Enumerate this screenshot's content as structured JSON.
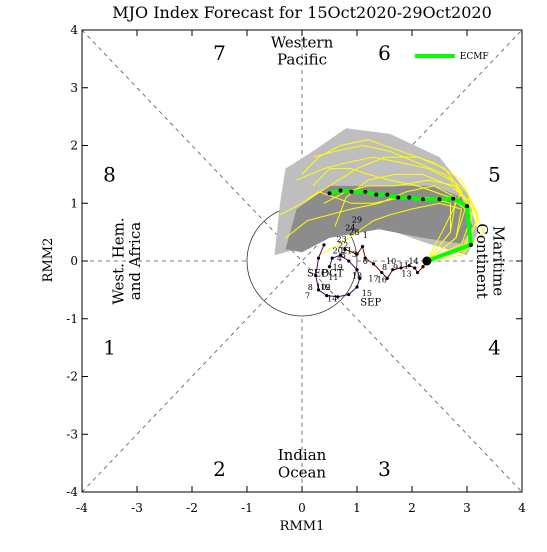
{
  "chart_data": {
    "type": "line",
    "title": "MJO Index Forecast for 15Oct2020-29Oct2020",
    "xlabel": "RMM1",
    "ylabel": "RMM2",
    "xlim": [
      -4,
      4
    ],
    "ylim": [
      -4,
      4
    ],
    "x_ticks": [
      "-4",
      "-3",
      "-2",
      "-1",
      "0",
      "1",
      "2",
      "3",
      "4"
    ],
    "y_ticks": [
      "-4",
      "-3",
      "-2",
      "-1",
      "0",
      "1",
      "2",
      "3",
      "4"
    ],
    "phases": [
      "1",
      "2",
      "3",
      "4",
      "5",
      "6",
      "7",
      "8"
    ],
    "regions": {
      "top": [
        "Western",
        "Pacific"
      ],
      "bottom": [
        "Indian",
        "Ocean"
      ],
      "left": [
        "West. Hem.",
        "and Africa"
      ],
      "right": [
        "Maritime",
        "Continent"
      ]
    },
    "legend": {
      "label": "ECMF",
      "color": "#00ff00",
      "position": "top-right"
    },
    "colors": {
      "ensemble_member": "#ffff00",
      "outer_spread": "#bebebe",
      "inner_spread": "#8c8c8c",
      "ensemble_mean": "#00ff00",
      "september": "#4b0082",
      "october": "#8b0000"
    },
    "outer_spread": [
      [
        -0.5,
        0.1
      ],
      [
        -0.4,
        1.0
      ],
      [
        -0.3,
        1.6
      ],
      [
        0.2,
        1.9
      ],
      [
        0.8,
        2.3
      ],
      [
        1.6,
        2.2
      ],
      [
        2.5,
        1.8
      ],
      [
        3.0,
        1.2
      ],
      [
        3.2,
        0.5
      ],
      [
        3.0,
        0.1
      ],
      [
        2.3,
        0.3
      ],
      [
        1.4,
        0.6
      ],
      [
        0.6,
        0.5
      ],
      [
        -0.1,
        0.2
      ]
    ],
    "inner_spread": [
      [
        -0.3,
        0.2
      ],
      [
        -0.1,
        0.9
      ],
      [
        0.5,
        1.3
      ],
      [
        1.5,
        1.3
      ],
      [
        2.4,
        1.3
      ],
      [
        2.9,
        1.1
      ],
      [
        3.1,
        0.6
      ],
      [
        2.9,
        0.3
      ],
      [
        2.2,
        0.4
      ],
      [
        1.4,
        0.55
      ],
      [
        0.5,
        0.4
      ],
      [
        0.0,
        0.15
      ]
    ],
    "ensemble_mean": {
      "x": [
        2.27,
        3.07,
        3.0,
        2.75,
        2.5,
        2.2,
        1.95,
        1.75,
        1.55,
        1.35,
        1.15,
        0.9,
        0.7,
        0.5
      ],
      "y": [
        0.0,
        0.28,
        0.95,
        1.08,
        1.07,
        1.07,
        1.1,
        1.1,
        1.15,
        1.15,
        1.2,
        1.2,
        1.22,
        1.17
      ]
    },
    "ensemble_members": [
      {
        "x": [
          2.27,
          2.8,
          3.0,
          2.7,
          2.3,
          1.8,
          1.3,
          0.8,
          0.4,
          -0.1
        ],
        "y": [
          0.0,
          0.4,
          1.0,
          1.4,
          1.6,
          1.7,
          1.8,
          1.7,
          1.6,
          1.4
        ]
      },
      {
        "x": [
          2.27,
          2.9,
          3.2,
          3.0,
          2.6,
          2.1,
          1.6,
          1.1,
          0.6,
          0.2
        ],
        "y": [
          0.0,
          0.2,
          0.7,
          1.2,
          1.5,
          1.7,
          1.9,
          2.0,
          1.9,
          1.8
        ]
      },
      {
        "x": [
          2.27,
          2.7,
          2.8,
          2.4,
          1.9,
          1.4,
          0.9,
          0.5,
          0.1,
          -0.3
        ],
        "y": [
          0.0,
          0.5,
          1.1,
          1.3,
          1.2,
          1.0,
          0.9,
          0.8,
          0.7,
          0.4
        ]
      },
      {
        "x": [
          2.27,
          3.0,
          3.1,
          2.8,
          2.3,
          1.7,
          1.2,
          0.8,
          0.4
        ],
        "y": [
          0.0,
          0.3,
          0.9,
          1.3,
          1.4,
          1.3,
          1.3,
          1.2,
          1.0
        ]
      },
      {
        "x": [
          2.27,
          2.6,
          2.9,
          2.6,
          2.1,
          1.5,
          1.0,
          0.5,
          0.0,
          -0.4
        ],
        "y": [
          0.0,
          0.6,
          1.2,
          1.6,
          1.8,
          1.8,
          1.6,
          1.3,
          1.0,
          0.8
        ]
      },
      {
        "x": [
          2.27,
          2.9,
          3.3,
          3.1,
          2.7,
          2.2,
          1.7,
          1.2,
          0.8,
          0.6
        ],
        "y": [
          0.0,
          0.1,
          0.5,
          1.0,
          1.3,
          1.5,
          1.5,
          1.4,
          1.1,
          0.6
        ]
      },
      {
        "x": [
          2.27,
          2.8,
          2.9,
          2.5,
          2.0,
          1.6,
          1.3,
          1.0,
          0.7,
          0.3
        ],
        "y": [
          0.0,
          0.4,
          0.9,
          1.0,
          0.9,
          0.8,
          0.7,
          0.5,
          0.3,
          0.1
        ]
      },
      {
        "x": [
          2.27,
          3.0,
          3.2,
          2.9,
          2.4,
          1.8,
          1.2,
          0.7,
          0.3,
          0.0
        ],
        "y": [
          0.0,
          0.2,
          0.8,
          1.4,
          1.7,
          1.9,
          2.1,
          2.0,
          1.8,
          1.5
        ]
      },
      {
        "x": [
          2.27,
          2.7,
          2.7,
          2.3,
          1.8,
          1.3,
          0.9,
          0.6,
          0.3,
          0.0
        ],
        "y": [
          0.0,
          0.5,
          1.0,
          1.1,
          1.1,
          1.0,
          1.0,
          1.1,
          1.2,
          1.0
        ]
      },
      {
        "x": [
          2.27,
          2.9,
          3.1,
          2.7,
          2.1,
          1.6,
          1.2,
          0.9,
          0.5,
          0.2
        ],
        "y": [
          0.0,
          0.3,
          0.8,
          1.1,
          1.3,
          1.4,
          1.5,
          1.6,
          1.6,
          1.3
        ]
      }
    ],
    "observed_september": {
      "x": [
        0.4,
        0.3,
        0.25,
        0.3,
        0.45,
        0.65,
        0.85,
        1.0,
        1.05,
        1.0,
        0.85,
        0.7,
        0.55,
        0.5
      ],
      "y": [
        0.28,
        0.05,
        -0.25,
        -0.5,
        -0.6,
        -0.62,
        -0.58,
        -0.45,
        -0.3,
        -0.15,
        0.0,
        0.1,
        0.05,
        -0.1
      ],
      "labels": [
        {
          "text": "SEP",
          "x": 1.25,
          "y": -0.72
        }
      ]
    },
    "observed_october": {
      "x": [
        0.78,
        1.0,
        1.1,
        1.15,
        1.3,
        1.45,
        1.55,
        1.65,
        1.8,
        1.95,
        2.05,
        2.1,
        2.2,
        2.27
      ],
      "y": [
        0.2,
        0.12,
        0.25,
        0.05,
        -0.05,
        -0.2,
        -0.3,
        -0.15,
        -0.12,
        -0.08,
        -0.12,
        -0.2,
        -0.1,
        0.0
      ],
      "labels": [
        {
          "text": "13",
          "x": 1.9,
          "y": -0.22
        },
        {
          "text": "14",
          "x": 2.03,
          "y": 0.0
        }
      ]
    },
    "day_labels": [
      {
        "text": "29",
        "x": 1.0,
        "y": 0.72
      },
      {
        "text": "24",
        "x": 0.88,
        "y": 0.58
      },
      {
        "text": "28",
        "x": 0.95,
        "y": 0.5
      },
      {
        "text": "1",
        "x": 1.15,
        "y": 0.45
      },
      {
        "text": "23",
        "x": 0.72,
        "y": 0.38
      },
      {
        "text": "22",
        "x": 0.75,
        "y": 0.28
      },
      {
        "text": "21",
        "x": 0.82,
        "y": 0.18
      },
      {
        "text": "3",
        "x": 0.95,
        "y": 0.12
      },
      {
        "text": "20",
        "x": 0.65,
        "y": 0.18
      },
      {
        "text": "5",
        "x": 0.75,
        "y": 0.1
      },
      {
        "text": "6",
        "x": 1.15,
        "y": 0.0
      },
      {
        "text": "4",
        "x": 0.68,
        "y": 0.05
      },
      {
        "text": "19",
        "x": 0.65,
        "y": -0.1
      },
      {
        "text": "18",
        "x": 1.0,
        "y": -0.25
      },
      {
        "text": "17",
        "x": 1.3,
        "y": -0.3
      },
      {
        "text": "16",
        "x": 1.45,
        "y": -0.32
      },
      {
        "text": "15",
        "x": 1.18,
        "y": -0.55
      },
      {
        "text": "14",
        "x": 0.55,
        "y": -0.65
      },
      {
        "text": "11",
        "x": 0.57,
        "y": -0.28
      },
      {
        "text": "10",
        "x": 0.35,
        "y": -0.45
      },
      {
        "text": "9",
        "x": 0.47,
        "y": -0.45
      },
      {
        "text": "8",
        "x": 0.15,
        "y": -0.45
      },
      {
        "text": "7",
        "x": 0.1,
        "y": -0.6
      },
      {
        "text": "12",
        "x": 0.43,
        "y": -0.45
      },
      {
        "text": "8",
        "x": 1.5,
        "y": -0.1
      },
      {
        "text": "9",
        "x": 1.7,
        "y": -0.1
      },
      {
        "text": "10",
        "x": 1.62,
        "y": 0.0
      },
      {
        "text": "11",
        "x": 1.85,
        "y": -0.08
      }
    ],
    "month_labels": [
      {
        "text": "SEP",
        "x": 0.28,
        "y": -0.22
      },
      {
        "text": "OCT",
        "x": 0.55,
        "y": -0.22
      }
    ]
  }
}
